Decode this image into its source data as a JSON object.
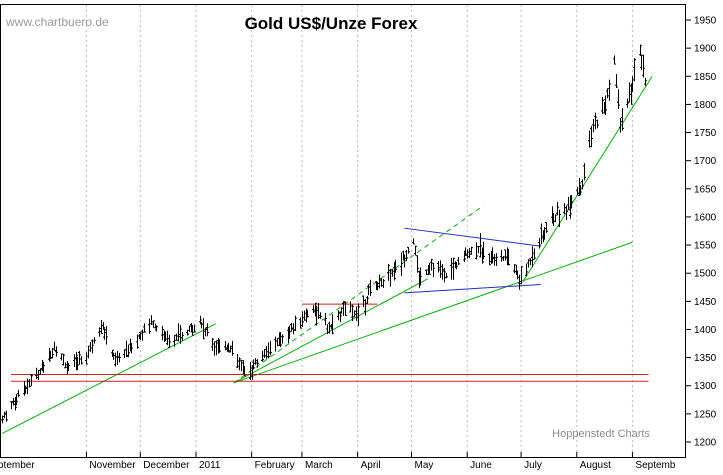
{
  "chart_data": {
    "type": "ohlc",
    "title": "Gold US$/Unze Forex",
    "watermark": "www.chartbuero.de",
    "credit": "Hoppenstedt Charts",
    "ylim": [
      1190,
      1960
    ],
    "y_ticks": [
      1200,
      1250,
      1300,
      1350,
      1400,
      1450,
      1500,
      1550,
      1600,
      1650,
      1700,
      1750,
      1800,
      1850,
      1900,
      1950
    ],
    "x_start": "2010-09-15",
    "x_end": "2011-09-08",
    "month_labels": [
      {
        "label": "ptember",
        "date": "2010-09-15"
      },
      {
        "label": "November",
        "date": "2010-11-01"
      },
      {
        "label": "December",
        "date": "2010-12-01"
      },
      {
        "label": "2011",
        "date": "2011-01-01"
      },
      {
        "label": "February",
        "date": "2011-02-01"
      },
      {
        "label": "March",
        "date": "2011-03-01"
      },
      {
        "label": "April",
        "date": "2011-04-01"
      },
      {
        "label": "May",
        "date": "2011-05-01"
      },
      {
        "label": "June",
        "date": "2011-06-01"
      },
      {
        "label": "July",
        "date": "2011-07-01"
      },
      {
        "label": "August",
        "date": "2011-08-01"
      },
      {
        "label": "Septemb",
        "date": "2011-09-01"
      }
    ],
    "price_path": [
      [
        "2010-09-15",
        1240
      ],
      [
        "2010-09-25",
        1290
      ],
      [
        "2010-10-05",
        1320
      ],
      [
        "2010-10-14",
        1370
      ],
      [
        "2010-10-22",
        1330
      ],
      [
        "2010-11-01",
        1355
      ],
      [
        "2010-11-09",
        1410
      ],
      [
        "2010-11-17",
        1345
      ],
      [
        "2010-11-26",
        1370
      ],
      [
        "2010-12-07",
        1415
      ],
      [
        "2010-12-15",
        1385
      ],
      [
        "2010-12-24",
        1385
      ],
      [
        "2011-01-03",
        1415
      ],
      [
        "2011-01-10",
        1375
      ],
      [
        "2011-01-19",
        1370
      ],
      [
        "2011-01-28",
        1325
      ],
      [
        "2011-02-02",
        1335
      ],
      [
        "2011-02-10",
        1365
      ],
      [
        "2011-02-20",
        1390
      ],
      [
        "2011-03-01",
        1420
      ],
      [
        "2011-03-07",
        1440
      ],
      [
        "2011-03-16",
        1400
      ],
      [
        "2011-03-24",
        1435
      ],
      [
        "2011-04-01",
        1430
      ],
      [
        "2011-04-08",
        1470
      ],
      [
        "2011-04-18",
        1495
      ],
      [
        "2011-04-25",
        1520
      ],
      [
        "2011-05-02",
        1560
      ],
      [
        "2011-05-05",
        1490
      ],
      [
        "2011-05-12",
        1515
      ],
      [
        "2011-05-20",
        1495
      ],
      [
        "2011-05-31",
        1535
      ],
      [
        "2011-06-07",
        1545
      ],
      [
        "2011-06-15",
        1530
      ],
      [
        "2011-06-24",
        1525
      ],
      [
        "2011-07-01",
        1485
      ],
      [
        "2011-07-08",
        1540
      ],
      [
        "2011-07-18",
        1595
      ],
      [
        "2011-07-27",
        1620
      ],
      [
        "2011-08-04",
        1660
      ],
      [
        "2011-08-10",
        1760
      ],
      [
        "2011-08-17",
        1800
      ],
      [
        "2011-08-22",
        1880
      ],
      [
        "2011-08-25",
        1760
      ],
      [
        "2011-08-31",
        1825
      ],
      [
        "2011-09-05",
        1890
      ],
      [
        "2011-09-08",
        1840
      ]
    ],
    "trendlines": [
      {
        "color": "#11aa11",
        "style": "solid",
        "from": [
          "2010-09-15",
          1215
        ],
        "to": [
          "2011-01-12",
          1410
        ]
      },
      {
        "color": "#11aa11",
        "style": "solid",
        "from": [
          "2011-01-22",
          1305
        ],
        "to": [
          "2011-05-10",
          1490
        ]
      },
      {
        "color": "#11aa11",
        "style": "dashed",
        "from": [
          "2011-01-22",
          1305
        ],
        "to": [
          "2011-06-10",
          1620
        ]
      },
      {
        "color": "#11aa11",
        "style": "solid",
        "from": [
          "2011-01-22",
          1305
        ],
        "to": [
          "2011-09-01",
          1555
        ]
      },
      {
        "color": "#11aa11",
        "style": "solid",
        "from": [
          "2011-07-02",
          1485
        ],
        "to": [
          "2011-09-12",
          1850
        ]
      },
      {
        "color": "#1f2fbf",
        "style": "solid",
        "from": [
          "2011-04-27",
          1580
        ],
        "to": [
          "2011-07-12",
          1548
        ]
      },
      {
        "color": "#1f2fbf",
        "style": "solid",
        "from": [
          "2011-04-27",
          1465
        ],
        "to": [
          "2011-07-12",
          1480
        ]
      },
      {
        "color": "#cc2222",
        "style": "solid",
        "from": [
          "2011-03-01",
          1445
        ],
        "to": [
          "2011-04-12",
          1445
        ]
      },
      {
        "color": "#cc2222",
        "style": "solid",
        "from": [
          "2010-09-20",
          1320
        ],
        "to": [
          "2011-09-10",
          1320
        ]
      },
      {
        "color": "#cc2222",
        "style": "solid",
        "from": [
          "2010-09-20",
          1308
        ],
        "to": [
          "2011-09-10",
          1308
        ]
      }
    ],
    "colors": {
      "bars": "#000000",
      "grid": "#bbbbbb",
      "axis": "#000000"
    },
    "grid": true
  }
}
